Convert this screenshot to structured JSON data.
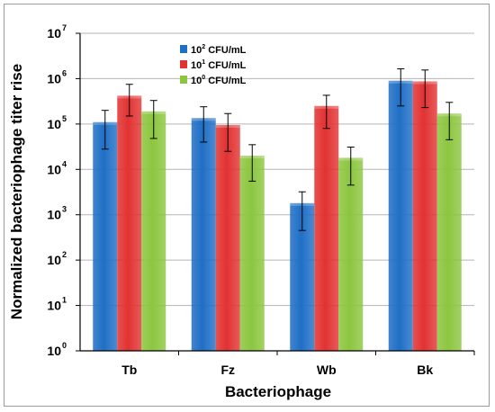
{
  "chart_data": {
    "type": "bar",
    "title": "",
    "xlabel": "Bacteriophage",
    "ylabel": "Normalized bacteriophage titer rise",
    "y_scale": "log",
    "ylim": [
      1,
      10000000
    ],
    "y_ticks": [
      {
        "base": "10",
        "exp": "0"
      },
      {
        "base": "10",
        "exp": "1"
      },
      {
        "base": "10",
        "exp": "2"
      },
      {
        "base": "10",
        "exp": "3"
      },
      {
        "base": "10",
        "exp": "4"
      },
      {
        "base": "10",
        "exp": "5"
      },
      {
        "base": "10",
        "exp": "6"
      },
      {
        "base": "10",
        "exp": "7"
      }
    ],
    "categories": [
      "Tb",
      "Fz",
      "Wb",
      "Bk"
    ],
    "grid": "horizontal",
    "legend_position": "top-left",
    "series": [
      {
        "name": "10^2 CFU/mL",
        "legend_base": "10",
        "legend_exp": "2",
        "legend_unit": " CFU/mL",
        "color": "#1f6fc6",
        "values": [
          110000,
          135000,
          1800,
          900000
        ],
        "err_low": [
          28000,
          40000,
          450,
          250000
        ],
        "err_high": [
          200000,
          240000,
          3200,
          1650000
        ]
      },
      {
        "name": "10^1 CFU/mL",
        "legend_base": "10",
        "legend_exp": "1",
        "legend_unit": " CFU/mL",
        "color": "#e23232",
        "values": [
          420000,
          95000,
          250000,
          870000
        ],
        "err_low": [
          150000,
          25000,
          80000,
          230000
        ],
        "err_high": [
          750000,
          170000,
          430000,
          1550000
        ]
      },
      {
        "name": "10^0 CFU/mL",
        "legend_base": "10",
        "legend_exp": "0",
        "legend_unit": " CFU/mL",
        "color": "#8cc63f",
        "values": [
          190000,
          20000,
          18000,
          170000
        ],
        "err_low": [
          48000,
          5500,
          4500,
          45000
        ],
        "err_high": [
          330000,
          35000,
          31000,
          300000
        ]
      }
    ]
  }
}
